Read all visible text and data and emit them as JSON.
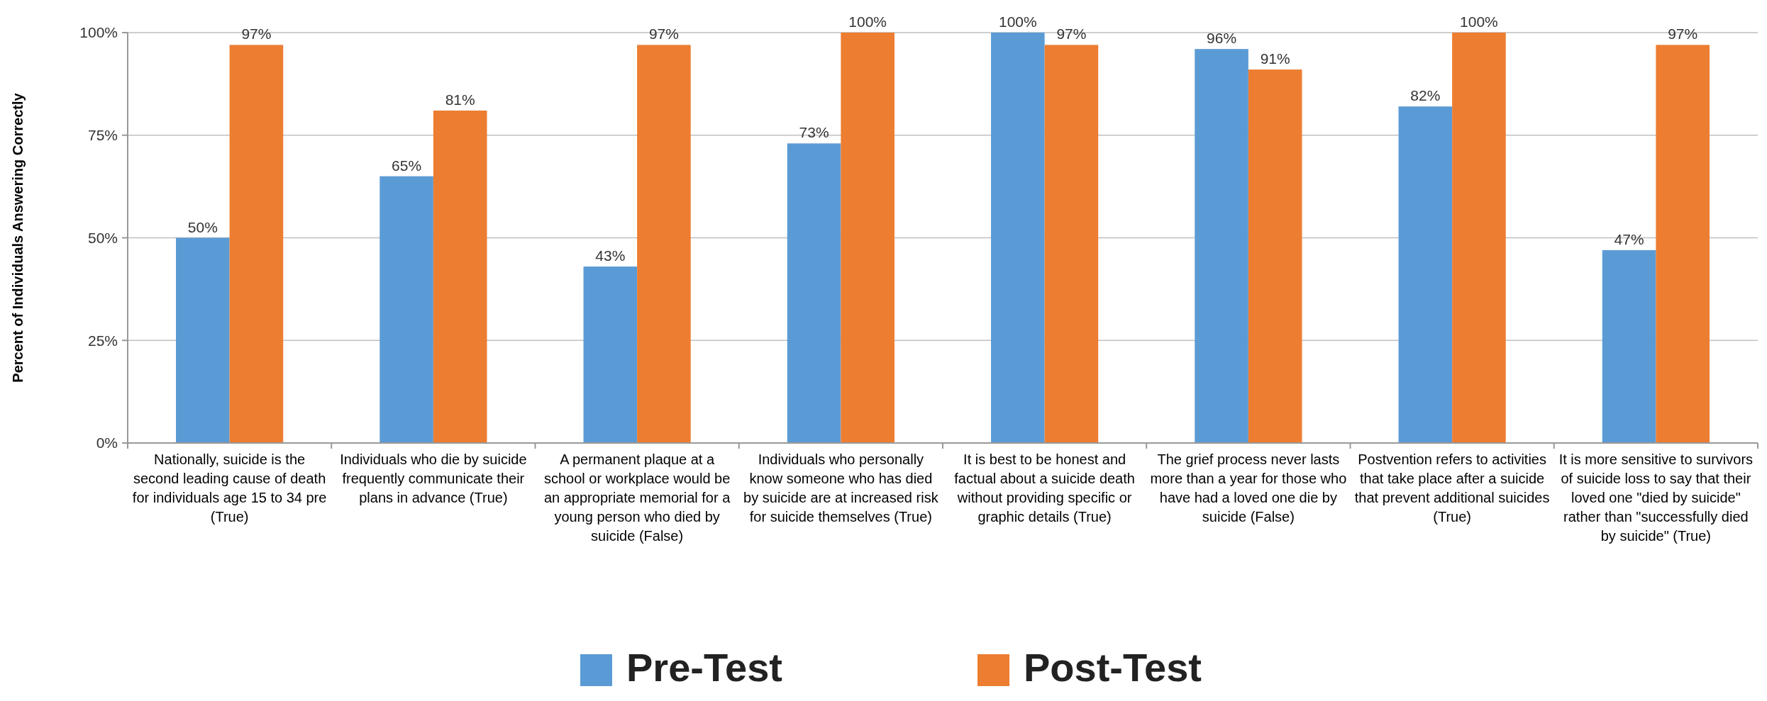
{
  "chart_data": {
    "type": "bar",
    "ylabel": "Percent of Individuals Answering Correctly",
    "categories": [
      "Nationally, suicide is the second leading cause of death for individuals age 15 to 34 pre (True)",
      "Individuals who die by suicide frequently communicate their plans in advance (True)",
      "A permanent plaque at a school or workplace would be an appropriate memorial for a young person who died by suicide (False)",
      "Individuals who personally know someone who has died by suicide are at increased risk for suicide themselves (True)",
      "It is best to be honest and factual about a suicide death without providing specific or graphic details (True)",
      "The grief process never lasts more than a year for those who have had a loved one die by suicide (False)",
      "Postvention refers to activities that take place after a suicide that prevent additional suicides (True)",
      "It is more sensitive to survivors of suicide loss to say that their loved one \"died by suicide\" rather than \"successfully died by suicide\" (True)"
    ],
    "series": [
      {
        "name": "Pre-Test",
        "color": "#5b9bd5",
        "values": [
          50,
          65,
          43,
          73,
          100,
          96,
          82,
          47
        ],
        "value_labels": [
          "50%",
          "65%",
          "43%",
          "73%",
          "100%",
          "96%",
          "82%",
          "47%"
        ]
      },
      {
        "name": "Post-Test",
        "color": "#ed7d31",
        "values": [
          97,
          81,
          97,
          100,
          97,
          91,
          100,
          97
        ],
        "value_labels": [
          "97%",
          "81%",
          "97%",
          "100%",
          "97%",
          "91%",
          "100%",
          "97%"
        ]
      }
    ],
    "ylim": [
      0,
      100
    ],
    "yticks": [
      {
        "value": 0,
        "label": "0%"
      },
      {
        "value": 25,
        "label": "25%"
      },
      {
        "value": 50,
        "label": "50%"
      },
      {
        "value": 75,
        "label": "75%"
      },
      {
        "value": 100,
        "label": "100%"
      }
    ],
    "grid": "y",
    "legend": "bottom"
  }
}
